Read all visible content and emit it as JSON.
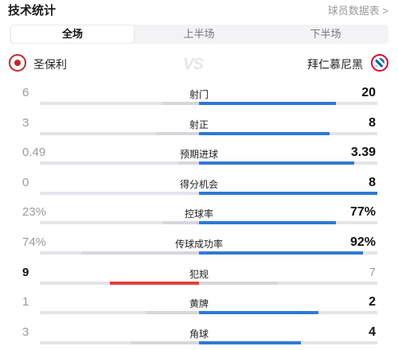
{
  "header": {
    "title": "技术统计",
    "player_link": "球员数据表 >"
  },
  "tabs": [
    {
      "label": "全场",
      "active": true
    },
    {
      "label": "上半场",
      "active": false
    },
    {
      "label": "下半场",
      "active": false
    }
  ],
  "teams": {
    "home": {
      "name": "圣保利",
      "logo_icon": "st-pauli-crest-icon"
    },
    "away": {
      "name": "拜仁慕尼黑",
      "logo_icon": "bayern-munich-crest-icon"
    },
    "vs": "VS"
  },
  "colors": {
    "home_bar": "#e0403a",
    "away_bar": "#2f79d6",
    "track": "#e3e4e7",
    "neutral_bar": "#d6d7da"
  },
  "stats": [
    {
      "label": "射门",
      "home": "6",
      "away": "20",
      "home_frac": 0.23,
      "away_frac": 0.77,
      "leader": "away"
    },
    {
      "label": "射正",
      "home": "3",
      "away": "8",
      "home_frac": 0.27,
      "away_frac": 0.73,
      "leader": "away"
    },
    {
      "label": "预期进球",
      "home": "0.49",
      "away": "3.39",
      "home_frac": 0.13,
      "away_frac": 0.87,
      "leader": "away"
    },
    {
      "label": "得分机会",
      "home": "0",
      "away": "8",
      "home_frac": 0.0,
      "away_frac": 1.0,
      "leader": "away"
    },
    {
      "label": "控球率",
      "home": "23%",
      "away": "77%",
      "home_frac": 0.23,
      "away_frac": 0.77,
      "leader": "away"
    },
    {
      "label": "传球成功率",
      "home": "74%",
      "away": "92%",
      "home_frac": 0.74,
      "away_frac": 0.92,
      "leader": "away"
    },
    {
      "label": "犯规",
      "home": "9",
      "away": "7",
      "home_frac": 0.56,
      "away_frac": 0.44,
      "leader": "home"
    },
    {
      "label": "黄牌",
      "home": "1",
      "away": "2",
      "home_frac": 0.33,
      "away_frac": 0.67,
      "leader": "away"
    },
    {
      "label": "角球",
      "home": "3",
      "away": "4",
      "home_frac": 0.43,
      "away_frac": 0.57,
      "leader": "away"
    }
  ]
}
